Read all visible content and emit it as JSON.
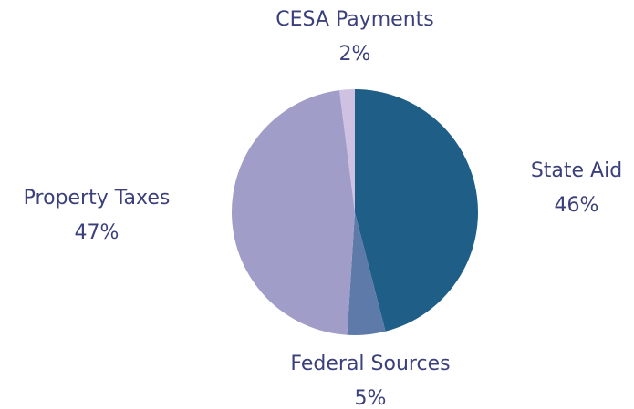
{
  "chart_data": {
    "type": "pie",
    "categories": [
      "State Aid",
      "Federal Sources",
      "Property Taxes",
      "CESA Payments"
    ],
    "values": [
      46,
      5,
      47,
      2
    ],
    "value_labels": [
      "46%",
      "5%",
      "47%",
      "2%"
    ],
    "colors": [
      "#1f5e87",
      "#5d7aa9",
      "#a09dc9",
      "#cfc1e1"
    ]
  }
}
